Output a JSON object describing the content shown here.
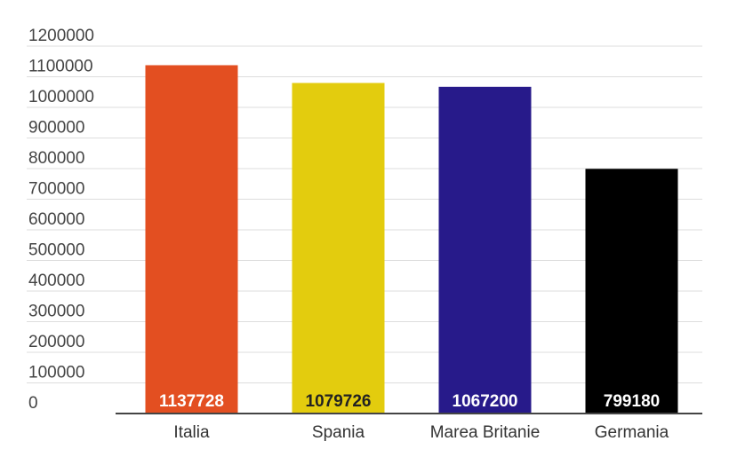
{
  "chart_data": {
    "type": "bar",
    "categories": [
      "Italia",
      "Spania",
      "Marea Britanie",
      "Germania"
    ],
    "values": [
      1137728,
      1079726,
      1067200,
      799180
    ],
    "data_labels": [
      "1137728",
      "1079726",
      "1067200",
      "799180"
    ],
    "colors": [
      "#e34f21",
      "#e3cc0e",
      "#271a8a",
      "#000000"
    ],
    "label_colors": [
      "#ffffff",
      "#222222",
      "#ffffff",
      "#ffffff"
    ],
    "yticks": [
      "0",
      "100000",
      "200000",
      "300000",
      "400000",
      "500000",
      "600000",
      "700000",
      "800000",
      "900000",
      "1000000",
      "1100000",
      "1200000"
    ],
    "ylim": [
      0,
      1200000
    ],
    "grid": true,
    "title": "",
    "xlabel": "",
    "ylabel": ""
  }
}
